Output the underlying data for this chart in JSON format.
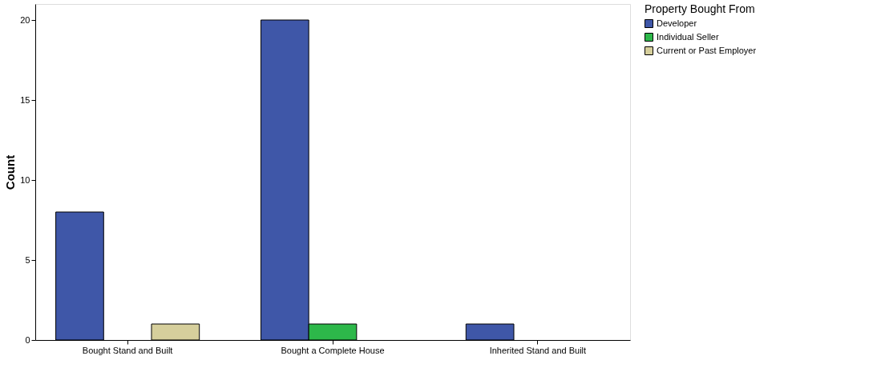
{
  "chart_data": {
    "type": "bar",
    "ylabel": "Count",
    "legend_title": "Property Bought From",
    "categories": [
      "Bought Stand and Built",
      "Bought a Complete House",
      "Inherited Stand and Built"
    ],
    "series": [
      {
        "name": "Developer",
        "color": "#3f57a8",
        "values": [
          8,
          20,
          1
        ]
      },
      {
        "name": "Individual Seller",
        "color": "#2db84a",
        "values": [
          null,
          1,
          null
        ]
      },
      {
        "name": "Current or Past Employer",
        "color": "#d6cf9c",
        "values": [
          1,
          null,
          null
        ]
      }
    ],
    "ylim": [
      0,
      21
    ],
    "yticks": [
      0,
      5,
      10,
      15,
      20
    ],
    "grid": false,
    "legend": "top right"
  }
}
